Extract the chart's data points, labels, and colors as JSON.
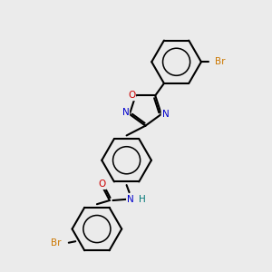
{
  "background_color": "#ebebeb",
  "bond_color": "black",
  "bond_width": 1.5,
  "atom_colors": {
    "Br": "#cc7700",
    "N": "#0000cc",
    "O": "#cc0000",
    "H": "#007777"
  },
  "figsize": [
    3.0,
    3.0
  ],
  "dpi": 100
}
